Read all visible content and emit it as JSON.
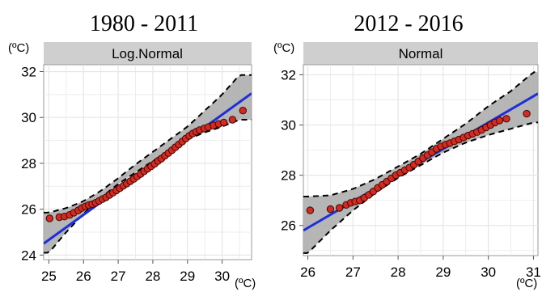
{
  "chart_data": [
    {
      "type": "scatter",
      "title": "1980 - 2011",
      "facet_label": "Log.Normal",
      "y_unit": "(ºC)",
      "x_unit": "(ºC)",
      "xlim": [
        24.85,
        30.85
      ],
      "ylim": [
        23.8,
        32.3
      ],
      "x_ticks": [
        25,
        26,
        27,
        28,
        29,
        30
      ],
      "y_ticks": [
        24,
        26,
        28,
        30,
        32
      ],
      "grid": true,
      "fit_line": {
        "x": [
          24.85,
          30.85
        ],
        "y": [
          24.5,
          31.05
        ]
      },
      "confidence_band": {
        "x": [
          25.0,
          25.5,
          26.0,
          26.5,
          27.0,
          27.5,
          28.0,
          28.5,
          29.0,
          29.5,
          30.0,
          30.5
        ],
        "lower": [
          24.1,
          25.0,
          25.8,
          26.5,
          27.1,
          27.6,
          28.1,
          28.6,
          29.05,
          29.35,
          29.6,
          29.9
        ],
        "upper": [
          25.85,
          26.05,
          26.35,
          26.8,
          27.35,
          27.95,
          28.5,
          29.05,
          29.6,
          30.3,
          31.0,
          31.85
        ]
      },
      "points": [
        [
          25.02,
          25.6
        ],
        [
          25.3,
          25.65
        ],
        [
          25.45,
          25.68
        ],
        [
          25.6,
          25.75
        ],
        [
          25.72,
          25.85
        ],
        [
          25.85,
          25.95
        ],
        [
          25.95,
          26.05
        ],
        [
          26.05,
          26.12
        ],
        [
          26.15,
          26.18
        ],
        [
          26.25,
          26.22
        ],
        [
          26.35,
          26.28
        ],
        [
          26.45,
          26.36
        ],
        [
          26.55,
          26.44
        ],
        [
          26.65,
          26.52
        ],
        [
          26.75,
          26.62
        ],
        [
          26.85,
          26.72
        ],
        [
          26.95,
          26.82
        ],
        [
          27.05,
          26.92
        ],
        [
          27.15,
          27.02
        ],
        [
          27.25,
          27.12
        ],
        [
          27.35,
          27.22
        ],
        [
          27.45,
          27.32
        ],
        [
          27.55,
          27.43
        ],
        [
          27.65,
          27.54
        ],
        [
          27.75,
          27.65
        ],
        [
          27.85,
          27.76
        ],
        [
          27.95,
          27.87
        ],
        [
          28.05,
          27.98
        ],
        [
          28.15,
          28.1
        ],
        [
          28.25,
          28.21
        ],
        [
          28.35,
          28.33
        ],
        [
          28.45,
          28.45
        ],
        [
          28.55,
          28.57
        ],
        [
          28.65,
          28.7
        ],
        [
          28.75,
          28.82
        ],
        [
          28.85,
          28.95
        ],
        [
          28.95,
          29.08
        ],
        [
          29.05,
          29.2
        ],
        [
          29.15,
          29.3
        ],
        [
          29.25,
          29.38
        ],
        [
          29.35,
          29.45
        ],
        [
          29.48,
          29.52
        ],
        [
          29.6,
          29.58
        ],
        [
          29.75,
          29.65
        ],
        [
          29.9,
          29.72
        ],
        [
          30.05,
          29.78
        ],
        [
          30.3,
          29.9
        ],
        [
          30.6,
          30.3
        ]
      ]
    },
    {
      "type": "scatter",
      "title": "2012 - 2016",
      "facet_label": "Normal",
      "y_unit": "(ºC)",
      "x_unit": "(ºC)",
      "xlim": [
        25.9,
        31.1
      ],
      "ylim": [
        24.8,
        32.4
      ],
      "x_ticks": [
        26,
        27,
        28,
        29,
        30,
        31
      ],
      "y_ticks": [
        26,
        28,
        30,
        32
      ],
      "grid": true,
      "fit_line": {
        "x": [
          25.9,
          31.1
        ],
        "y": [
          25.8,
          31.25
        ]
      },
      "confidence_band": {
        "x": [
          26.0,
          26.5,
          27.0,
          27.5,
          28.0,
          28.5,
          29.0,
          29.5,
          30.0,
          30.5,
          31.0
        ],
        "lower": [
          24.9,
          25.8,
          26.6,
          27.3,
          27.9,
          28.4,
          28.9,
          29.3,
          29.6,
          29.85,
          30.1
        ],
        "upper": [
          27.15,
          27.2,
          27.45,
          27.85,
          28.35,
          28.85,
          29.45,
          30.05,
          30.75,
          31.35,
          32.1
        ]
      },
      "points": [
        [
          26.05,
          26.6
        ],
        [
          26.5,
          26.65
        ],
        [
          26.7,
          26.7
        ],
        [
          26.85,
          26.82
        ],
        [
          26.95,
          26.9
        ],
        [
          27.05,
          26.95
        ],
        [
          27.15,
          27.0
        ],
        [
          27.25,
          27.1
        ],
        [
          27.35,
          27.22
        ],
        [
          27.45,
          27.35
        ],
        [
          27.55,
          27.5
        ],
        [
          27.65,
          27.62
        ],
        [
          27.75,
          27.75
        ],
        [
          27.85,
          27.88
        ],
        [
          27.95,
          28.0
        ],
        [
          28.05,
          28.1
        ],
        [
          28.15,
          28.2
        ],
        [
          28.25,
          28.3
        ],
        [
          28.35,
          28.42
        ],
        [
          28.45,
          28.55
        ],
        [
          28.55,
          28.68
        ],
        [
          28.65,
          28.8
        ],
        [
          28.75,
          28.92
        ],
        [
          28.85,
          29.05
        ],
        [
          28.95,
          29.15
        ],
        [
          29.05,
          29.22
        ],
        [
          29.15,
          29.28
        ],
        [
          29.25,
          29.35
        ],
        [
          29.35,
          29.42
        ],
        [
          29.45,
          29.5
        ],
        [
          29.55,
          29.58
        ],
        [
          29.65,
          29.65
        ],
        [
          29.75,
          29.72
        ],
        [
          29.85,
          29.8
        ],
        [
          29.95,
          29.9
        ],
        [
          30.05,
          30.0
        ],
        [
          30.15,
          30.1
        ],
        [
          30.25,
          30.18
        ],
        [
          30.4,
          30.25
        ],
        [
          30.85,
          30.45
        ]
      ]
    }
  ]
}
